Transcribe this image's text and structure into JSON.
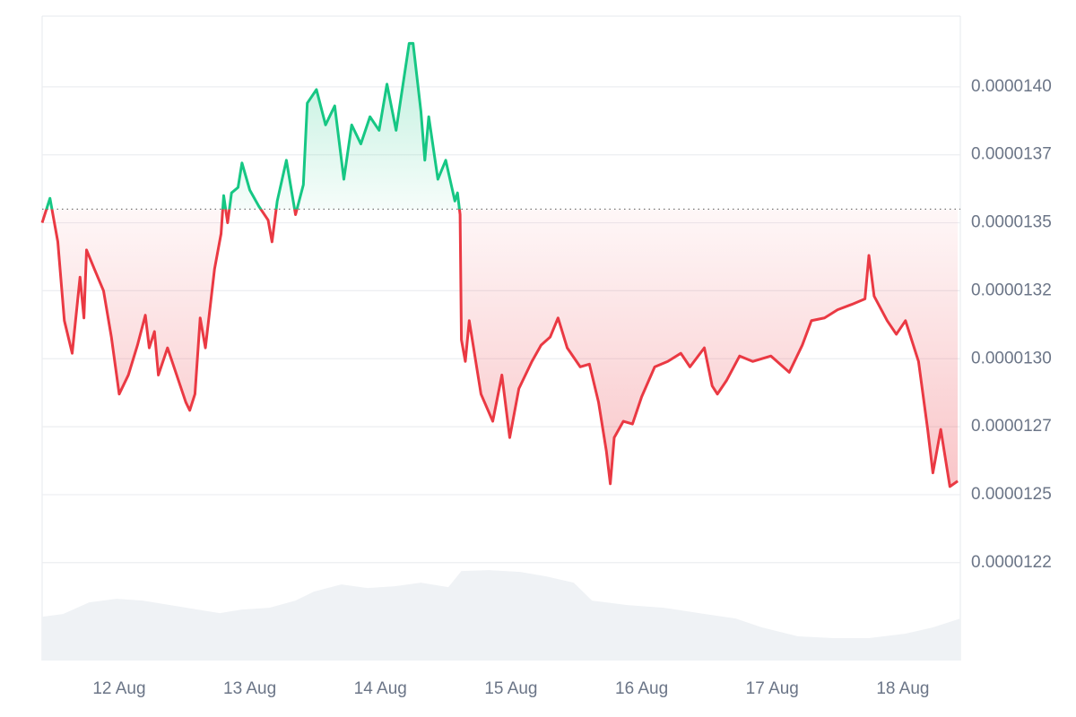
{
  "chart_data": {
    "type": "line",
    "xlim": [
      11.41,
      18.44
    ],
    "xticks": [
      {
        "value": 12,
        "label": "12 Aug"
      },
      {
        "value": 13,
        "label": "13 Aug"
      },
      {
        "value": 14,
        "label": "14 Aug"
      },
      {
        "value": 15,
        "label": "15 Aug"
      },
      {
        "value": 16,
        "label": "16 Aug"
      },
      {
        "value": 17,
        "label": "17 Aug"
      },
      {
        "value": 18,
        "label": "18 Aug"
      }
    ],
    "ylim": [
      1.189e-05,
      1.426e-05
    ],
    "yticks": [
      {
        "value": 1.4e-05,
        "label": "0.0000140"
      },
      {
        "value": 1.375e-05,
        "label": "0.0000137"
      },
      {
        "value": 1.35e-05,
        "label": "0.0000135"
      },
      {
        "value": 1.325e-05,
        "label": "0.0000132"
      },
      {
        "value": 1.3e-05,
        "label": "0.0000130"
      },
      {
        "value": 1.275e-05,
        "label": "0.0000127"
      },
      {
        "value": 1.25e-05,
        "label": "0.0000125"
      },
      {
        "value": 1.225e-05,
        "label": "0.0000122"
      }
    ],
    "y2lim": [
      0,
      720
    ],
    "grid": true,
    "baseline": 1.355e-05,
    "up_color": "#16c784",
    "down_color": "#ea3943",
    "series": [
      {
        "x": [
          11.41,
          11.47,
          11.53,
          11.58,
          11.64,
          11.7,
          11.73,
          11.75,
          11.81,
          11.88,
          11.94,
          12.0,
          12.07,
          12.14,
          12.2,
          12.23,
          12.27,
          12.3,
          12.37,
          12.44,
          12.51,
          12.54,
          12.58,
          12.62,
          12.66,
          12.73,
          12.78,
          12.8,
          12.83,
          12.86,
          12.91,
          12.94,
          13.0,
          13.07,
          13.14,
          13.17,
          13.21,
          13.28,
          13.35,
          13.41,
          13.44,
          13.51,
          13.58,
          13.65,
          13.72,
          13.78,
          13.85,
          13.92,
          13.99,
          14.05,
          14.12,
          14.22,
          14.25,
          14.31,
          14.34,
          14.37,
          14.44,
          14.5,
          14.57,
          14.59,
          14.61,
          14.62,
          14.65,
          14.68,
          14.77,
          14.86,
          14.93,
          14.99,
          15.06,
          15.16,
          15.23,
          15.3,
          15.36,
          15.43,
          15.53,
          15.6,
          15.67,
          15.73,
          15.76,
          15.79,
          15.86,
          15.93,
          16.0,
          16.1,
          16.2,
          16.3,
          16.37,
          16.48,
          16.54,
          16.58,
          16.65,
          16.75,
          16.85,
          16.99,
          17.13,
          17.23,
          17.3,
          17.4,
          17.5,
          17.61,
          17.71,
          17.74,
          17.78,
          17.88,
          17.95,
          18.02,
          18.12,
          18.19,
          18.23,
          18.29,
          18.36,
          18.42
        ],
        "values": [
          1.35e-05,
          1.359e-05,
          1.343e-05,
          1.314e-05,
          1.302e-05,
          1.33e-05,
          1.315e-05,
          1.34e-05,
          1.333e-05,
          1.325e-05,
          1.308e-05,
          1.287e-05,
          1.294e-05,
          1.305e-05,
          1.316e-05,
          1.304e-05,
          1.31e-05,
          1.294e-05,
          1.304e-05,
          1.294e-05,
          1.284e-05,
          1.281e-05,
          1.287e-05,
          1.315e-05,
          1.304e-05,
          1.333e-05,
          1.346e-05,
          1.36e-05,
          1.35e-05,
          1.361e-05,
          1.363e-05,
          1.372e-05,
          1.362e-05,
          1.356e-05,
          1.351e-05,
          1.343e-05,
          1.358e-05,
          1.373e-05,
          1.353e-05,
          1.364e-05,
          1.394e-05,
          1.399e-05,
          1.386e-05,
          1.393e-05,
          1.366e-05,
          1.386e-05,
          1.379e-05,
          1.389e-05,
          1.384e-05,
          1.401e-05,
          1.384e-05,
          1.416e-05,
          1.416e-05,
          1.391e-05,
          1.373e-05,
          1.389e-05,
          1.366e-05,
          1.373e-05,
          1.358e-05,
          1.361e-05,
          1.353e-05,
          1.307e-05,
          1.299e-05,
          1.314e-05,
          1.287e-05,
          1.277e-05,
          1.294e-05,
          1.271e-05,
          1.289e-05,
          1.299e-05,
          1.305e-05,
          1.308e-05,
          1.315e-05,
          1.304e-05,
          1.297e-05,
          1.298e-05,
          1.284e-05,
          1.266e-05,
          1.254e-05,
          1.271e-05,
          1.277e-05,
          1.276e-05,
          1.286e-05,
          1.297e-05,
          1.299e-05,
          1.302e-05,
          1.297e-05,
          1.304e-05,
          1.29e-05,
          1.287e-05,
          1.292e-05,
          1.301e-05,
          1.299e-05,
          1.301e-05,
          1.295e-05,
          1.305e-05,
          1.314e-05,
          1.315e-05,
          1.318e-05,
          1.32e-05,
          1.322e-05,
          1.338e-05,
          1.323e-05,
          1.314e-05,
          1.309e-05,
          1.314e-05,
          1.299e-05,
          1.274e-05,
          1.258e-05,
          1.274e-05,
          1.253e-05,
          1.255e-05
        ]
      },
      {
        "axis": "y2",
        "color": "#eff2f5",
        "x": [
          11.41,
          11.57,
          11.77,
          11.98,
          12.18,
          12.39,
          12.6,
          12.77,
          12.94,
          13.15,
          13.35,
          13.49,
          13.7,
          13.9,
          14.11,
          14.31,
          14.52,
          14.62,
          14.83,
          15.07,
          15.27,
          15.48,
          15.62,
          15.89,
          16.17,
          16.44,
          16.72,
          16.92,
          17.2,
          17.47,
          17.74,
          18.02,
          18.23,
          18.44
        ],
        "values": [
          49,
          52,
          65,
          69,
          67,
          62,
          57,
          53,
          57,
          59,
          67,
          77,
          85,
          81,
          83,
          87,
          82,
          100,
          101,
          99,
          94,
          87,
          67,
          62,
          59,
          53,
          47,
          37,
          27,
          25,
          25,
          30,
          37,
          47
        ]
      }
    ]
  }
}
